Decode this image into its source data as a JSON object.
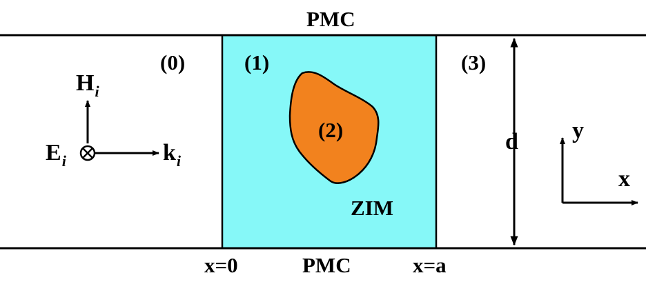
{
  "labels": {
    "top_boundary": "PMC",
    "bottom_boundary": "PMC",
    "region_0": "(0)",
    "region_1": "(1)",
    "region_2": "(2)",
    "region_3": "(3)",
    "zim": "ZIM",
    "x0": "x=0",
    "xa": "x=a",
    "width": "d",
    "field_H": "H",
    "field_H_sub": "i",
    "field_E": "E",
    "field_E_sub": "i",
    "field_k": "k",
    "field_k_sub": "i",
    "axis_y": "y",
    "axis_x": "x"
  },
  "colors": {
    "zim_fill": "#86F8F8",
    "inclusion_fill": "#F2821E",
    "stroke": "#000000"
  }
}
